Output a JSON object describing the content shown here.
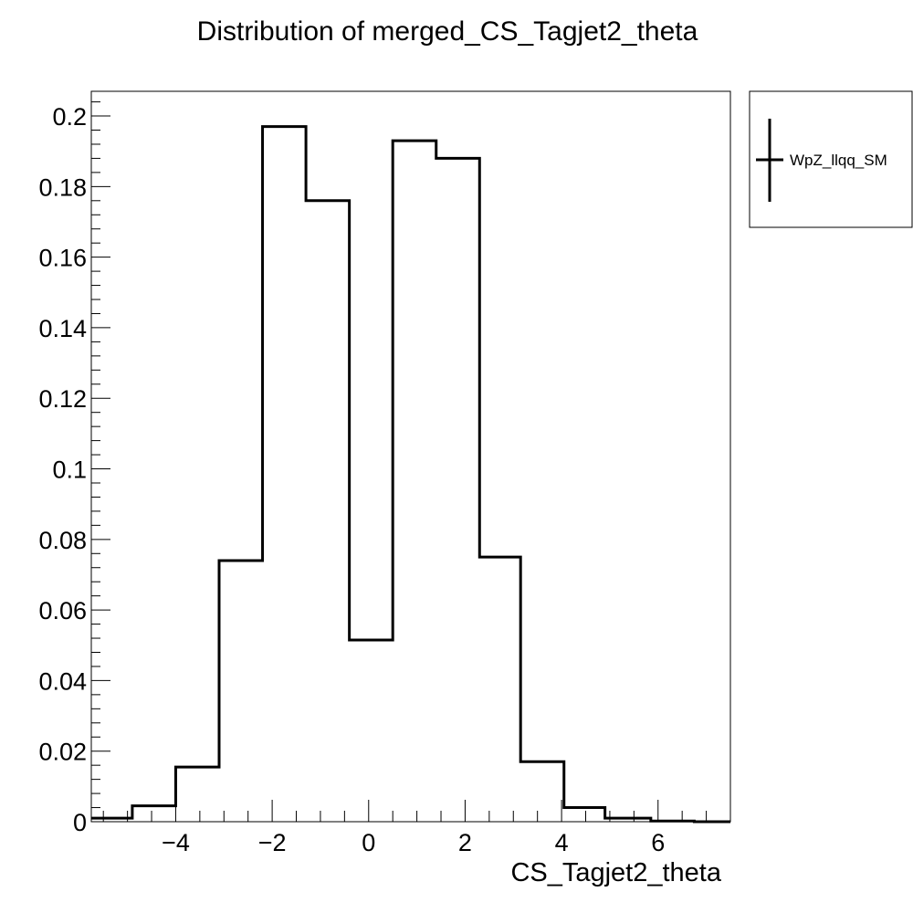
{
  "chart_data": {
    "type": "bar",
    "style": "step-histogram",
    "title": "Distribution of merged_CS_Tagjet2_theta",
    "xlabel": "CS_Tagjet2_theta",
    "ylabel": "",
    "xlim": [
      -5.75,
      7.5
    ],
    "ylim": [
      0,
      0.207
    ],
    "x_ticks": [
      -4,
      -2,
      0,
      2,
      4,
      6
    ],
    "x_tick_labels": [
      "−4",
      "−2",
      "0",
      "2",
      "4",
      "6"
    ],
    "y_ticks": [
      0,
      0.02,
      0.04,
      0.06,
      0.08,
      0.1,
      0.12,
      0.14,
      0.16,
      0.18,
      0.2
    ],
    "y_tick_labels": [
      "0",
      "0.02",
      "0.04",
      "0.06",
      "0.08",
      "0.1",
      "0.12",
      "0.14",
      "0.16",
      "0.18",
      "0.2"
    ],
    "grid": false,
    "legend_position": "outside-top-right",
    "bin_edges": [
      -5.75,
      -4.9,
      -4.0,
      -3.1,
      -2.2,
      -1.3,
      -0.4,
      0.5,
      1.4,
      2.3,
      3.15,
      4.05,
      4.9,
      5.85,
      6.75,
      7.5
    ],
    "series": [
      {
        "name": "WpZ_llqq_SM",
        "color": "#000000",
        "values": [
          0.001,
          0.0045,
          0.0155,
          0.074,
          0.197,
          0.176,
          0.0515,
          0.193,
          0.188,
          0.075,
          0.017,
          0.004,
          0.001,
          0.0002,
          0.0
        ]
      }
    ]
  }
}
